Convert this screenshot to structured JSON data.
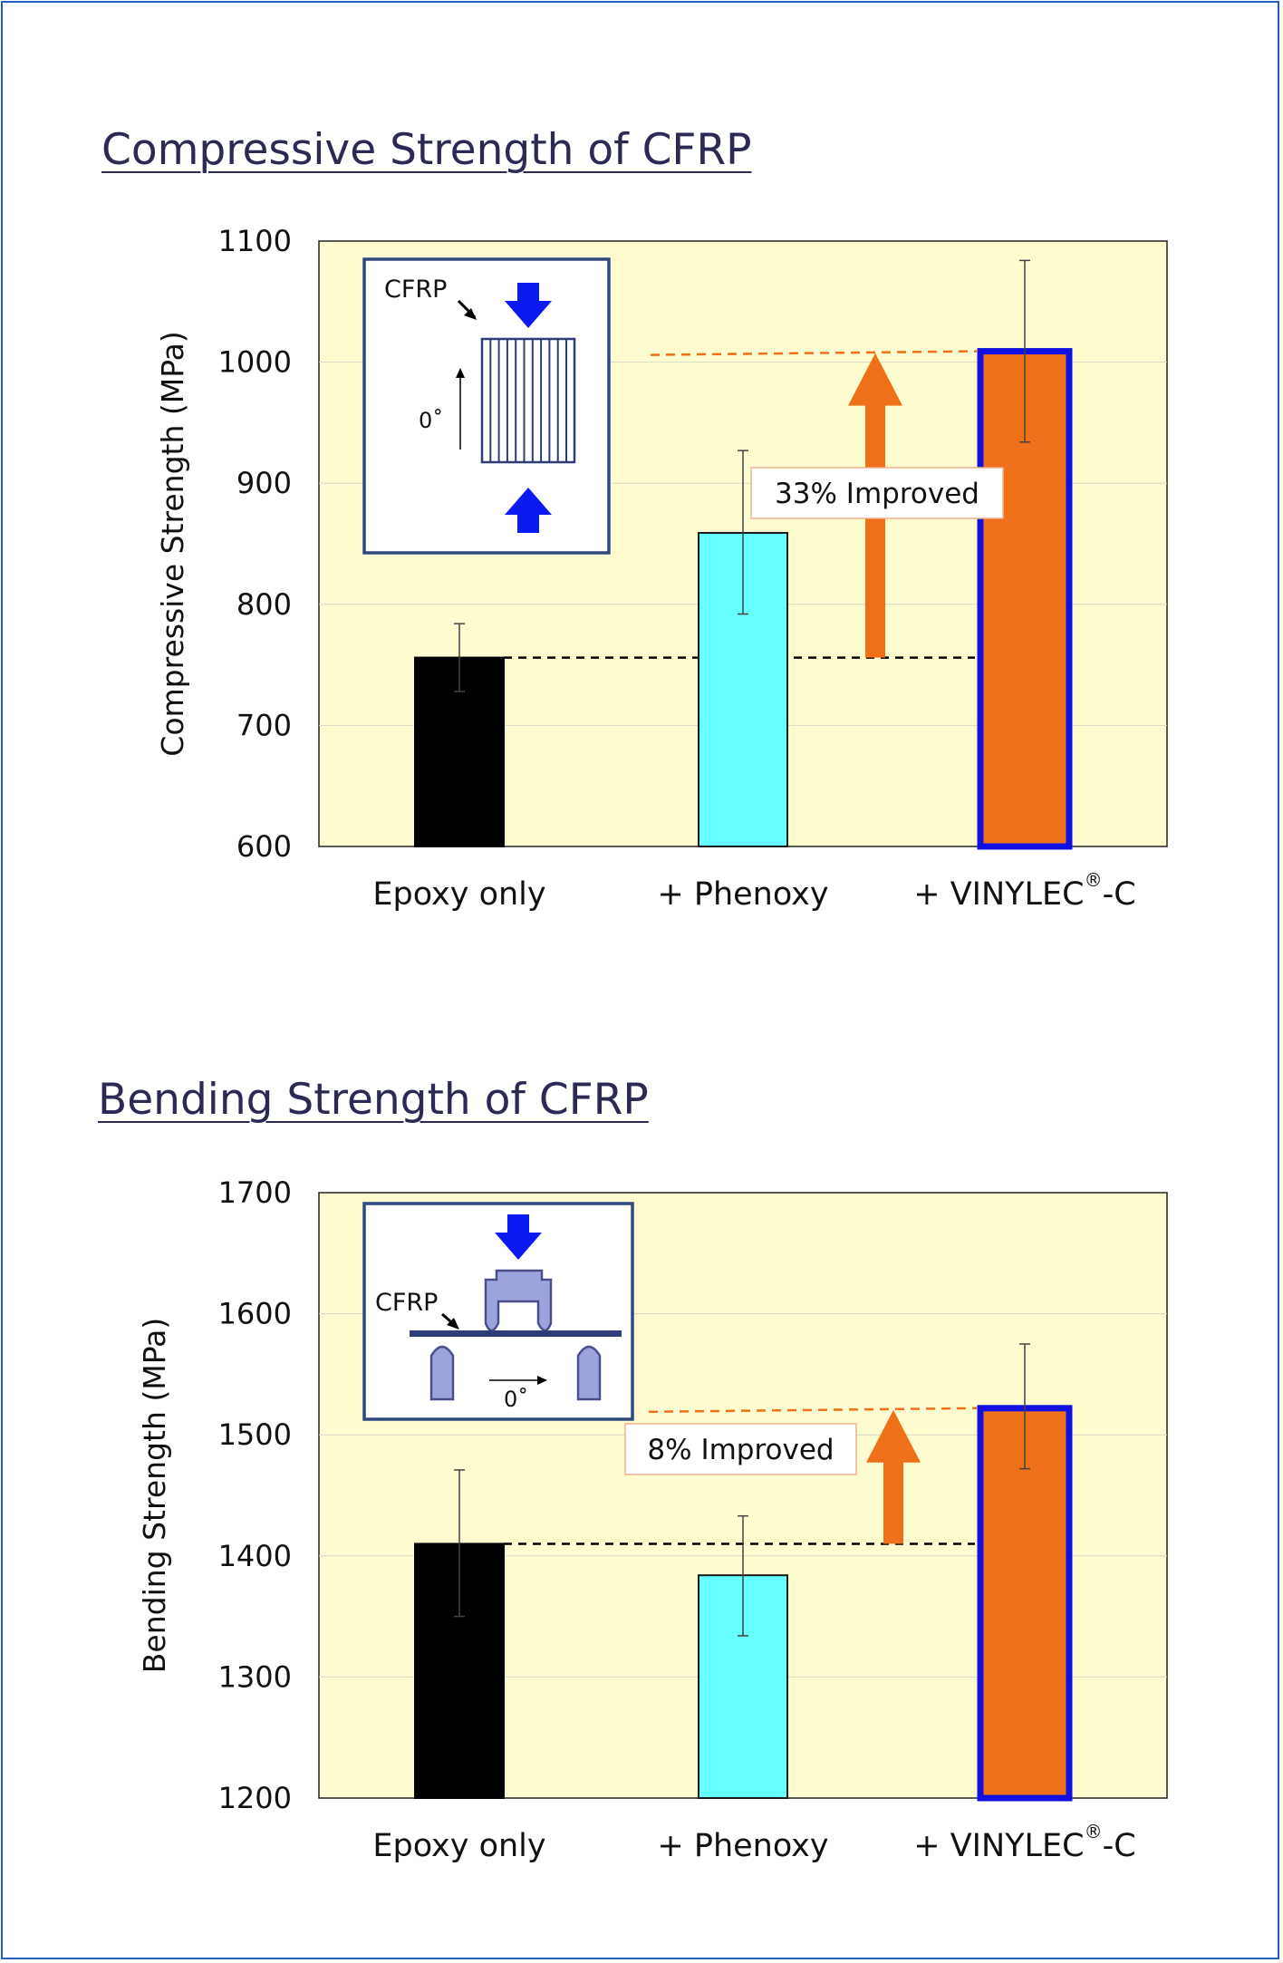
{
  "charts": [
    {
      "heading": "Compressive Strength of CFRP",
      "chart_data": {
        "type": "bar",
        "title": "Compressive Strength of CFRP",
        "ylabel": "Compressive Strength (MPa)",
        "xlabel": "",
        "ylim": [
          600,
          1100
        ],
        "yticks": [
          600,
          700,
          800,
          900,
          1000,
          1100
        ],
        "grid": true,
        "categories": [
          {
            "prefix": "Epoxy only",
            "sup": "",
            "suffix": ""
          },
          {
            "prefix": "+ Phenoxy",
            "sup": "",
            "suffix": ""
          },
          {
            "prefix": "+ VINYLEC",
            "sup": "®",
            "suffix": "-C"
          }
        ],
        "values": [
          756,
          859,
          1009
        ],
        "error_low": [
          728,
          792,
          934
        ],
        "error_high": [
          784,
          927,
          1084
        ],
        "bar_colors": [
          "#000000",
          "#66ffff",
          "#ef7018"
        ],
        "bar_border_colors": [
          "#000000",
          "#1a1a1a",
          "#1010e0"
        ],
        "baseline_value": 756,
        "improved_value": 1009,
        "improvement_label": "33% Improved",
        "inset": {
          "cfrp_label": "CFRP",
          "angle_label": "0˚"
        }
      }
    },
    {
      "heading": "Bending Strength of CFRP",
      "chart_data": {
        "type": "bar",
        "title": "Bending Strength of CFRP",
        "ylabel": "Bending Strength (MPa)",
        "xlabel": "",
        "ylim": [
          1200,
          1700
        ],
        "yticks": [
          1200,
          1300,
          1400,
          1500,
          1600,
          1700
        ],
        "grid": true,
        "categories": [
          {
            "prefix": "Epoxy only",
            "sup": "",
            "suffix": ""
          },
          {
            "prefix": "+ Phenoxy",
            "sup": "",
            "suffix": ""
          },
          {
            "prefix": "+ VINYLEC",
            "sup": "®",
            "suffix": "-C"
          }
        ],
        "values": [
          1410,
          1384,
          1522
        ],
        "error_low": [
          1350,
          1334,
          1472
        ],
        "error_high": [
          1471,
          1433,
          1575
        ],
        "bar_colors": [
          "#000000",
          "#66ffff",
          "#ef7018"
        ],
        "bar_border_colors": [
          "#000000",
          "#1a1a1a",
          "#1010e0"
        ],
        "baseline_value": 1410,
        "improved_value": 1522,
        "improvement_label": "8% Improved",
        "inset": {
          "cfrp_label": "CFRP",
          "angle_label": "0˚"
        }
      }
    }
  ],
  "colors": {
    "plot_background": "#fffdd0",
    "frame_border": "#1f5fbf",
    "title_color": "#2a2a55",
    "inset_border": "#2e4a80",
    "arrow_blue": "#0a1af0",
    "arrow_orange": "#ef7018",
    "jig_fill": "#9da3dc",
    "improved_line": "#ef7018"
  }
}
